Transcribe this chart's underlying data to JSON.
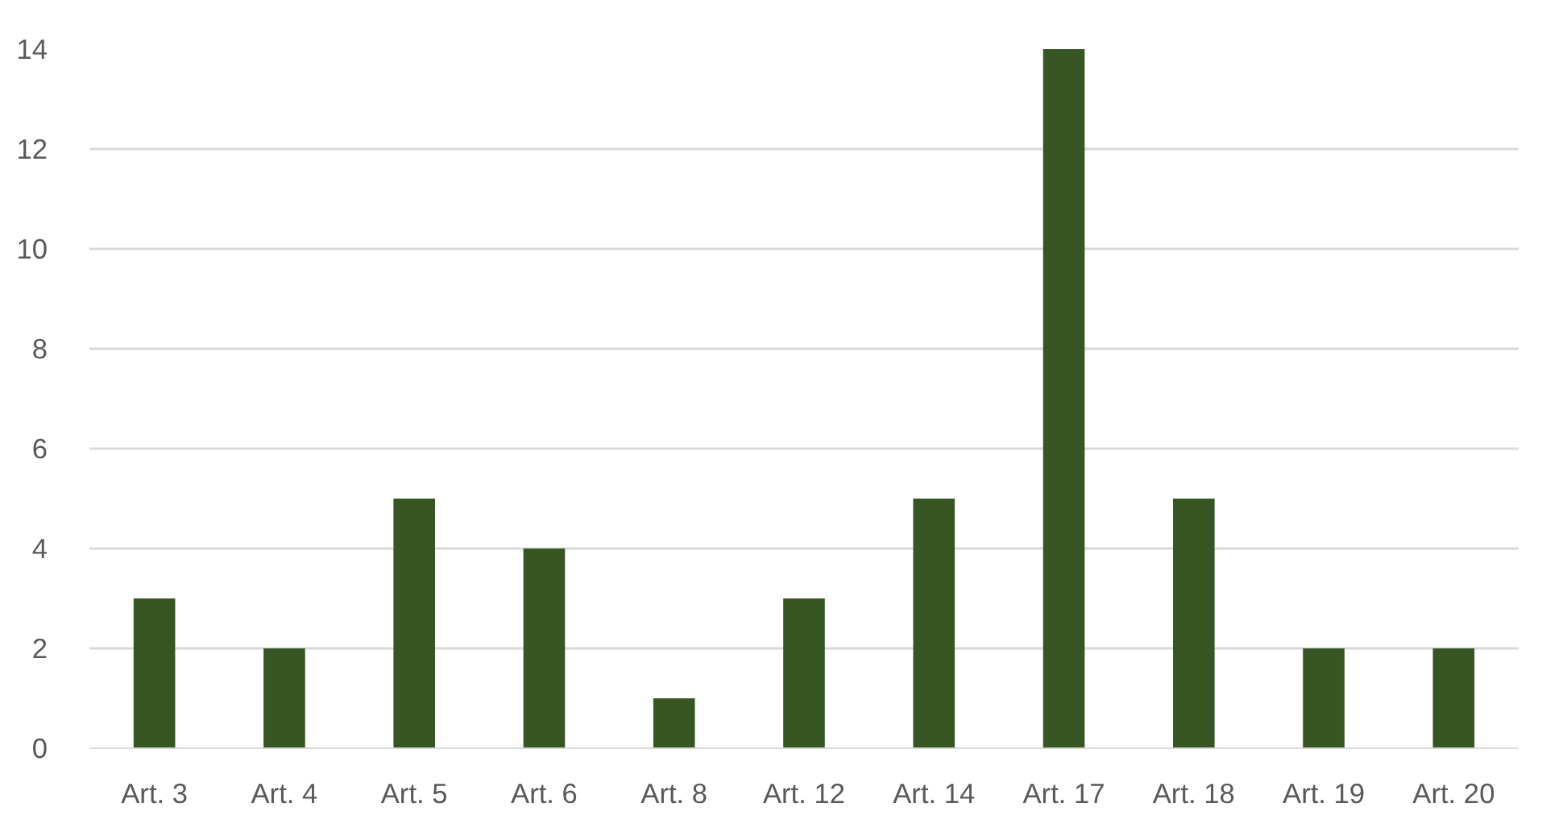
{
  "chart_data": {
    "type": "bar",
    "categories": [
      "Art. 3",
      "Art. 4",
      "Art. 5",
      "Art. 6",
      "Art. 8",
      "Art. 12",
      "Art. 14",
      "Art. 17",
      "Art. 18",
      "Art. 19",
      "Art. 20"
    ],
    "values": [
      3,
      2,
      5,
      4,
      1,
      3,
      5,
      14,
      5,
      2,
      2
    ],
    "color": "#375623",
    "ylim": [
      0,
      14
    ],
    "yticks": [
      0,
      2,
      4,
      6,
      8,
      10,
      12,
      14
    ],
    "grid": "y"
  }
}
